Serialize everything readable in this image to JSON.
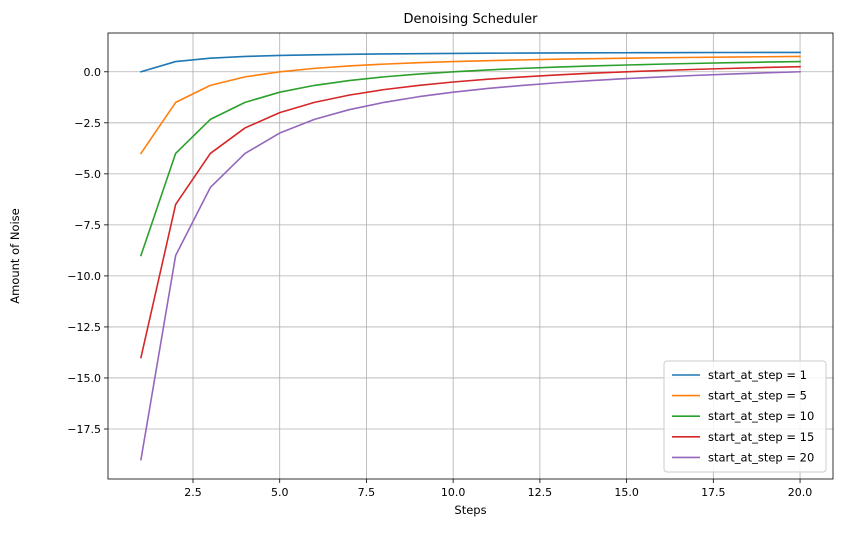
{
  "chart_data": {
    "type": "line",
    "title": "Denoising Scheduler",
    "xlabel": "Steps",
    "ylabel": "Amount of Noise",
    "xlim": [
      0.05,
      20.95
    ],
    "ylim": [
      -19.95,
      1.9
    ],
    "grid": true,
    "legend_position": "lower-right",
    "xticks": [
      2.5,
      5.0,
      7.5,
      10.0,
      12.5,
      15.0,
      17.5,
      20.0
    ],
    "xtick_labels": [
      "2.5",
      "5.0",
      "7.5",
      "10.0",
      "12.5",
      "15.0",
      "17.5",
      "20.0"
    ],
    "yticks": [
      0.0,
      -2.5,
      -5.0,
      -7.5,
      -10.0,
      -12.5,
      -15.0,
      -17.5
    ],
    "ytick_labels": [
      "0.0",
      "−2.5",
      "−5.0",
      "−7.5",
      "−10.0",
      "−12.5",
      "−15.0",
      "−17.5"
    ],
    "x": [
      1,
      2,
      3,
      4,
      5,
      6,
      7,
      8,
      9,
      10,
      11,
      12,
      13,
      14,
      15,
      16,
      17,
      18,
      19,
      20
    ],
    "series": [
      {
        "name": "start_at_step = 1",
        "color": "#1f77b4",
        "values": [
          0.0,
          0.5,
          0.667,
          0.75,
          0.8,
          0.833,
          0.857,
          0.875,
          0.889,
          0.9,
          0.909,
          0.917,
          0.923,
          0.929,
          0.933,
          0.938,
          0.941,
          0.944,
          0.947,
          0.95
        ]
      },
      {
        "name": "start_at_step = 5",
        "color": "#ff7f0e",
        "values": [
          -4.0,
          -1.5,
          -0.667,
          -0.25,
          0.0,
          0.167,
          0.286,
          0.375,
          0.444,
          0.5,
          0.545,
          0.583,
          0.615,
          0.643,
          0.667,
          0.688,
          0.706,
          0.722,
          0.737,
          0.75
        ]
      },
      {
        "name": "start_at_step = 10",
        "color": "#2ca02c",
        "values": [
          -9.0,
          -4.0,
          -2.333,
          -1.5,
          -1.0,
          -0.667,
          -0.429,
          -0.25,
          -0.111,
          0.0,
          0.091,
          0.167,
          0.231,
          0.286,
          0.333,
          0.375,
          0.412,
          0.444,
          0.474,
          0.5
        ]
      },
      {
        "name": "start_at_step = 15",
        "color": "#d62728",
        "values": [
          -14.0,
          -6.5,
          -4.0,
          -2.75,
          -2.0,
          -1.5,
          -1.143,
          -0.875,
          -0.667,
          -0.5,
          -0.364,
          -0.25,
          -0.154,
          -0.071,
          0.0,
          0.063,
          0.118,
          0.167,
          0.211,
          0.25
        ]
      },
      {
        "name": "start_at_step = 20",
        "color": "#9467bd",
        "values": [
          -19.0,
          -9.0,
          -5.667,
          -4.0,
          -3.0,
          -2.333,
          -1.857,
          -1.5,
          -1.222,
          -1.0,
          -0.818,
          -0.667,
          -0.538,
          -0.429,
          -0.333,
          -0.25,
          -0.176,
          -0.111,
          -0.053,
          0.0
        ]
      }
    ]
  }
}
